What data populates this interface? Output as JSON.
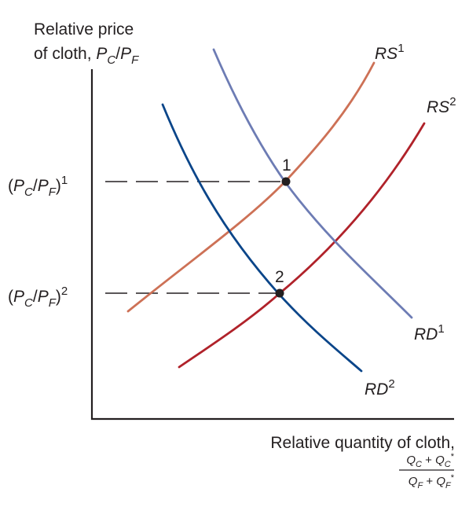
{
  "y_axis_title": {
    "line1": "Relative price",
    "line2_prefix": "of cloth, ",
    "line2_symbol_p1": "P",
    "line2_symbol_sub1": "C",
    "line2_symbol_slash": "/",
    "line2_symbol_p2": "P",
    "line2_symbol_sub2": "F"
  },
  "x_axis_title": {
    "line1": "Relative quantity of cloth,",
    "numerator_q1": "Q",
    "numerator_sub1": "C",
    "numerator_plus": " + ",
    "numerator_q2": "Q",
    "numerator_sub2": "C",
    "numerator_star": "*",
    "denominator_q1": "Q",
    "denominator_sub1": "F",
    "denominator_plus": " + ",
    "denominator_q2": "Q",
    "denominator_sub2": "F",
    "denominator_star": "*"
  },
  "price_levels": [
    {
      "open": "(",
      "p1": "P",
      "sub1": "C",
      "slash": "/",
      "p2": "P",
      "sub2": "F",
      "close": ")",
      "sup": "1"
    },
    {
      "open": "(",
      "p1": "P",
      "sub1": "C",
      "slash": "/",
      "p2": "P",
      "sub2": "F",
      "close": ")",
      "sup": "2"
    }
  ],
  "curves": {
    "rs1": {
      "base": "RS",
      "sup": "1",
      "color": "#cd7156"
    },
    "rs2": {
      "base": "RS",
      "sup": "2",
      "color": "#b0222a"
    },
    "rd1": {
      "base": "RD",
      "sup": "1",
      "color": "#6d7cb4"
    },
    "rd2": {
      "base": "RD",
      "sup": "2",
      "color": "#0a4589"
    }
  },
  "points": [
    {
      "label": "1"
    },
    {
      "label": "2"
    }
  ],
  "colors": {
    "axis": "#231f20",
    "dash": "#231f20",
    "point": "#231f20"
  }
}
